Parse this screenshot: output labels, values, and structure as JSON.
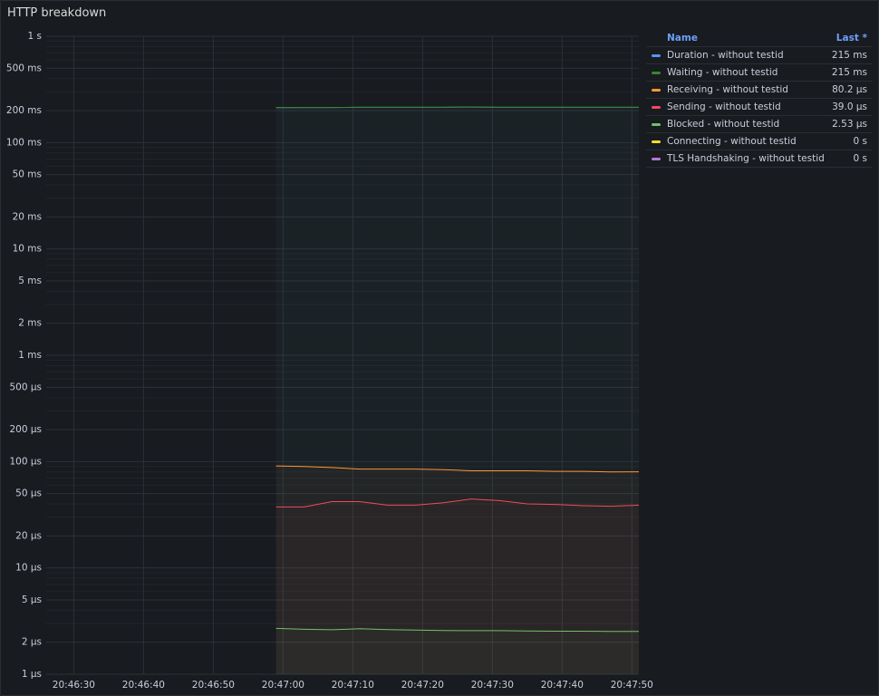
{
  "chart_data": {
    "type": "line",
    "title": "HTTP breakdown",
    "log_scale": true,
    "grid": true,
    "legend_position": "right",
    "x": [
      "20:46:59",
      "20:47:03",
      "20:47:07",
      "20:47:11",
      "20:47:15",
      "20:47:19",
      "20:47:23",
      "20:47:27",
      "20:47:31",
      "20:47:35",
      "20:47:39",
      "20:47:43",
      "20:47:47",
      "20:47:51"
    ],
    "xlim": [
      "20:46:28",
      "20:47:51"
    ],
    "xticks": [
      "20:46:30",
      "20:46:40",
      "20:46:50",
      "20:47:00",
      "20:47:10",
      "20:47:20",
      "20:47:30",
      "20:47:40",
      "20:47:50"
    ],
    "ylim": [
      1e-06,
      1
    ],
    "yticks": [
      {
        "value": 1,
        "label": "1 s"
      },
      {
        "value": 0.5,
        "label": "500 ms"
      },
      {
        "value": 0.2,
        "label": "200 ms"
      },
      {
        "value": 0.1,
        "label": "100 ms"
      },
      {
        "value": 0.05,
        "label": "50 ms"
      },
      {
        "value": 0.02,
        "label": "20 ms"
      },
      {
        "value": 0.01,
        "label": "10 ms"
      },
      {
        "value": 0.005,
        "label": "5 ms"
      },
      {
        "value": 0.002,
        "label": "2 ms"
      },
      {
        "value": 0.001,
        "label": "1 ms"
      },
      {
        "value": 0.0005,
        "label": "500 µs"
      },
      {
        "value": 0.0002,
        "label": "200 µs"
      },
      {
        "value": 0.0001,
        "label": "100 µs"
      },
      {
        "value": 5e-05,
        "label": "50 µs"
      },
      {
        "value": 2e-05,
        "label": "20 µs"
      },
      {
        "value": 1e-05,
        "label": "10 µs"
      },
      {
        "value": 5e-06,
        "label": "5 µs"
      },
      {
        "value": 2e-06,
        "label": "2 µs"
      },
      {
        "value": 1e-06,
        "label": "1 µs"
      }
    ],
    "legend_columns": [
      "Name",
      "Last *"
    ],
    "series": [
      {
        "name": "Duration - without testid",
        "color": "#5794f2",
        "last_label": "215 ms",
        "values": [
          0.213,
          0.214,
          0.214,
          0.215,
          0.215,
          0.215,
          0.215,
          0.216,
          0.215,
          0.215,
          0.215,
          0.215,
          0.215,
          0.215
        ]
      },
      {
        "name": "Waiting - without testid",
        "color": "#37872d",
        "last_label": "215 ms",
        "values": [
          0.213,
          0.214,
          0.214,
          0.215,
          0.215,
          0.215,
          0.215,
          0.216,
          0.215,
          0.215,
          0.215,
          0.215,
          0.215,
          0.215
        ]
      },
      {
        "name": "Receiving - without testid",
        "color": "#ff9830",
        "last_label": "80.2 µs",
        "values": [
          9.1e-05,
          9e-05,
          8.8e-05,
          8.5e-05,
          8.5e-05,
          8.5e-05,
          8.4e-05,
          8.2e-05,
          8.2e-05,
          8.2e-05,
          8.1e-05,
          8.1e-05,
          8e-05,
          8.02e-05
        ]
      },
      {
        "name": "Sending - without testid",
        "color": "#f2495c",
        "last_label": "39.0 µs",
        "values": [
          3.75e-05,
          3.75e-05,
          4.2e-05,
          4.2e-05,
          3.9e-05,
          3.9e-05,
          4.1e-05,
          4.45e-05,
          4.3e-05,
          4e-05,
          3.95e-05,
          3.85e-05,
          3.8e-05,
          3.9e-05
        ]
      },
      {
        "name": "Blocked - without testid",
        "color": "#73bf69",
        "last_label": "2.53 µs",
        "values": [
          2.7e-06,
          2.65e-06,
          2.62e-06,
          2.68e-06,
          2.63e-06,
          2.6e-06,
          2.58e-06,
          2.57e-06,
          2.57e-06,
          2.55e-06,
          2.54e-06,
          2.54e-06,
          2.53e-06,
          2.53e-06
        ]
      },
      {
        "name": "Connecting - without testid",
        "color": "#fade2a",
        "last_label": "0 s",
        "values": [
          0,
          0,
          0,
          0,
          0,
          0,
          0,
          0,
          0,
          0,
          0,
          0,
          0,
          0
        ]
      },
      {
        "name": "TLS Handshaking - without testid",
        "color": "#b877d9",
        "last_label": "0 s",
        "values": [
          0,
          0,
          0,
          0,
          0,
          0,
          0,
          0,
          0,
          0,
          0,
          0,
          0,
          0
        ]
      }
    ]
  }
}
